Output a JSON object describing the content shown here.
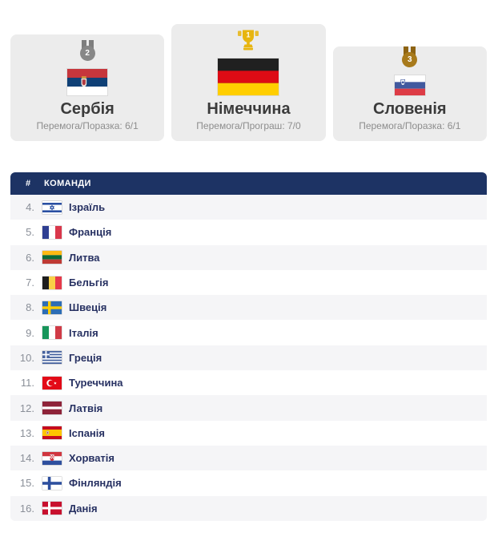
{
  "colors": {
    "header_bg": "#1d3364",
    "gold": "#e7b50f",
    "silver": "#878787",
    "bronze": "#a87a1b",
    "card_bg": "#ececec",
    "row_alt": "#f5f5f7",
    "team_text": "#273162"
  },
  "podium": {
    "cards": [
      {
        "id": "serbia",
        "code": "rs",
        "place": "2",
        "medal": "silver",
        "icon": "silver-medal-icon",
        "flag_icon": "flag-serbia-icon",
        "country": "Сербія",
        "record": "Перемога/Поразка: 6/1"
      },
      {
        "id": "germany",
        "code": "de",
        "place": "1",
        "medal": "gold",
        "icon": "gold-trophy-icon",
        "flag_icon": "flag-germany-icon",
        "country": "Німеччина",
        "record": "Перемога/Програш: 7/0"
      },
      {
        "id": "slovenia",
        "code": "si",
        "place": "3",
        "medal": "bronze",
        "icon": "bronze-medal-icon",
        "flag_icon": "flag-slovenia-icon",
        "country": "Словенія",
        "record": "Перемога/Поразка: 6/1"
      }
    ]
  },
  "table": {
    "headers": {
      "rank": "#",
      "team": "КОМАНДИ"
    },
    "rows": [
      {
        "rank": "4.",
        "id": "israel",
        "code": "il",
        "flag_icon": "flag-israel-icon",
        "name": "Ізраїль"
      },
      {
        "rank": "5.",
        "id": "france",
        "code": "fr",
        "flag_icon": "flag-france-icon",
        "name": "Франція"
      },
      {
        "rank": "6.",
        "id": "lithuania",
        "code": "lt",
        "flag_icon": "flag-lithuania-icon",
        "name": "Литва"
      },
      {
        "rank": "7.",
        "id": "belgium",
        "code": "be",
        "flag_icon": "flag-belgium-icon",
        "name": "Бельгія"
      },
      {
        "rank": "8.",
        "id": "sweden",
        "code": "se",
        "flag_icon": "flag-sweden-icon",
        "name": "Швеція"
      },
      {
        "rank": "9.",
        "id": "italy",
        "code": "it",
        "flag_icon": "flag-italy-icon",
        "name": "Італія"
      },
      {
        "rank": "10.",
        "id": "greece",
        "code": "gr",
        "flag_icon": "flag-greece-icon",
        "name": "Греція"
      },
      {
        "rank": "11.",
        "id": "turkey",
        "code": "tr",
        "flag_icon": "flag-turkey-icon",
        "name": "Туреччина"
      },
      {
        "rank": "12.",
        "id": "latvia",
        "code": "lv",
        "flag_icon": "flag-latvia-icon",
        "name": "Латвія"
      },
      {
        "rank": "13.",
        "id": "spain",
        "code": "es",
        "flag_icon": "flag-spain-icon",
        "name": "Іспанія"
      },
      {
        "rank": "14.",
        "id": "croatia",
        "code": "hr",
        "flag_icon": "flag-croatia-icon",
        "name": "Хорватія"
      },
      {
        "rank": "15.",
        "id": "finland",
        "code": "fi",
        "flag_icon": "flag-finland-icon",
        "name": "Фінляндія"
      },
      {
        "rank": "16.",
        "id": "denmark",
        "code": "dk",
        "flag_icon": "flag-denmark-icon",
        "name": "Данія"
      }
    ]
  }
}
